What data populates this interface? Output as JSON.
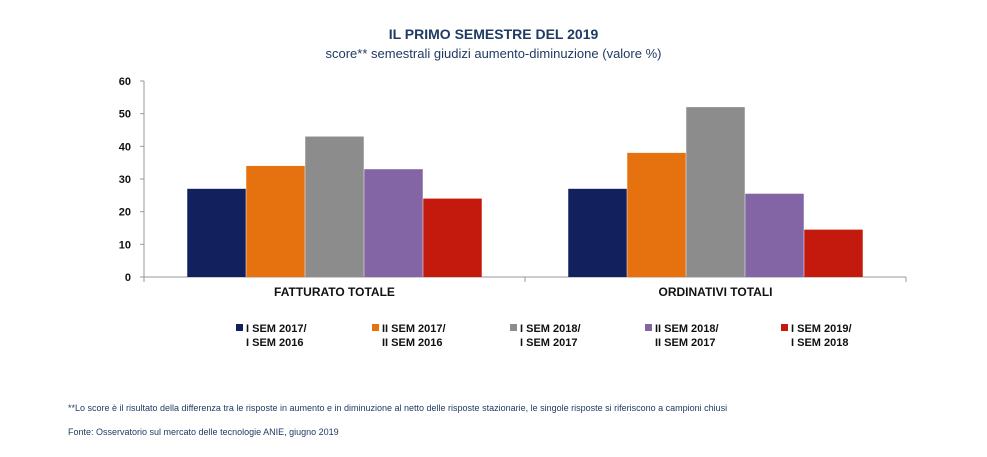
{
  "header": {
    "title": "IL PRIMO SEMESTRE DEL 2019",
    "subtitle": "score** semestrali giudizi aumento-diminuzione (valore %)"
  },
  "chart_data": {
    "type": "bar",
    "title": "IL PRIMO SEMESTRE DEL 2019",
    "subtitle": "score** semestrali giudizi aumento-diminuzione (valore %)",
    "categories": [
      "FATTURATO TOTALE",
      "ORDINATIVI TOTALI"
    ],
    "y_ticks": [
      "0",
      "10",
      "20",
      "30",
      "40",
      "50",
      "60"
    ],
    "ylim": [
      0,
      60
    ],
    "grid": false,
    "legend_position": "bottom",
    "series": [
      {
        "name_line1": "I SEM 2017/",
        "name_line2": "I SEM 2016",
        "color": "#12205e",
        "values": [
          27,
          27
        ]
      },
      {
        "name_line1": "II SEM 2017/",
        "name_line2": "II SEM 2016",
        "color": "#e5720e",
        "values": [
          34,
          38
        ]
      },
      {
        "name_line1": "I SEM 2018/",
        "name_line2": "I SEM 2017",
        "color": "#8c8c8c",
        "values": [
          43,
          52
        ]
      },
      {
        "name_line1": "II SEM 2018/",
        "name_line2": "II SEM 2017",
        "color": "#8364a4",
        "values": [
          33,
          25.5
        ]
      },
      {
        "name_line1": "I SEM 2019/",
        "name_line2": "I SEM 2018",
        "color": "#c41a0e",
        "values": [
          24,
          14.5
        ]
      }
    ]
  },
  "footer": {
    "note": "**Lo score è il risultato della differenza tra le risposte in aumento e in diminuzione al netto delle risposte stazionarie, le singole risposte si riferiscono a campioni chiusi",
    "source": "Fonte: Osservatorio sul mercato delle tecnologie ANIE, giugno 2019"
  }
}
